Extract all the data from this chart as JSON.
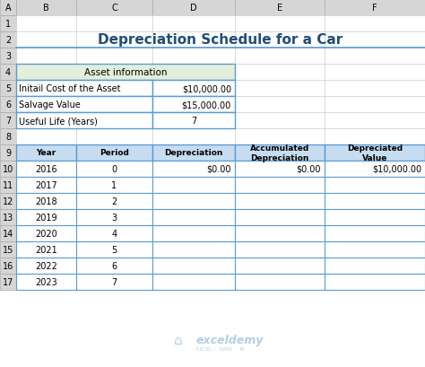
{
  "title": "Depreciation Schedule for a Car",
  "title_color": "#1F4E79",
  "title_fontsize": 11,
  "asset_header_bg": "#E2EFDA",
  "grid_line_color": "#5B9BD5",
  "asset_info": {
    "header": "Asset information",
    "rows": [
      [
        "Initail Cost of the Asset",
        "$10,000.00"
      ],
      [
        "Salvage Value",
        "$15,000.00"
      ],
      [
        "Useful Life (Years)",
        "7"
      ]
    ]
  },
  "schedule_headers": [
    "Year",
    "Period",
    "Depreciation",
    "Accumulated\nDepreciation",
    "Depreciated\nValue"
  ],
  "schedule_data": [
    [
      "2016",
      "0",
      "$0.00",
      "$0.00",
      "$10,000.00"
    ],
    [
      "2017",
      "1",
      "",
      "",
      ""
    ],
    [
      "2018",
      "2",
      "",
      "",
      ""
    ],
    [
      "2019",
      "3",
      "",
      "",
      ""
    ],
    [
      "2020",
      "4",
      "",
      "",
      ""
    ],
    [
      "2021",
      "5",
      "",
      "",
      ""
    ],
    [
      "2022",
      "6",
      "",
      "",
      ""
    ],
    [
      "2023",
      "7",
      "",
      "",
      ""
    ]
  ],
  "col_letters": [
    "A",
    "B",
    "C",
    "D",
    "E",
    "F"
  ],
  "watermark_text": "exceldemy",
  "watermark_sub": "EXCEL  ·  DATA  ·  BI",
  "outer_bg": "#F2F2F2",
  "col_hdr_color": "#D6D6D6",
  "hdr_bg": "#C6DCF0",
  "hdr_edge": "#5B9BD5"
}
